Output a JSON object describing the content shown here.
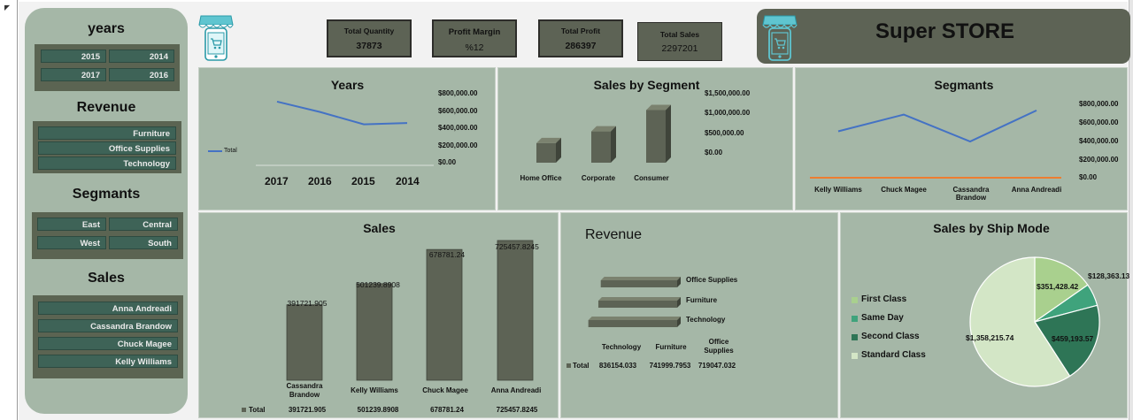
{
  "sidebar": {
    "years_title": "years",
    "years": [
      "2015",
      "2014",
      "2017",
      "2016"
    ],
    "revenue_title": "Revenue",
    "revenue": [
      "Furniture",
      "Office Supplies",
      "Technology"
    ],
    "segments_title": "Segmants",
    "segments": [
      "East",
      "Central",
      "West",
      "South"
    ],
    "sales_title": "Sales",
    "sales": [
      "Anna Andreadi",
      "Cassandra Brandow",
      "Chuck Magee",
      "Kelly Williams"
    ]
  },
  "kpis": {
    "total_quantity_label": "Total Quantity",
    "total_quantity_value": "37873",
    "profit_margin_label": "Profit Margin",
    "profit_margin_value": "%12",
    "total_profit_label": "Total Profit",
    "total_profit_value": "286397",
    "total_sales_label": "Total Sales",
    "total_sales_value": "2297201"
  },
  "banner": {
    "title": "Super STORE"
  },
  "colors": {
    "panel": "#a5b7a7",
    "dark_box": "#5d6355",
    "slicer_btn": "#3e6357",
    "line_blue": "#4472c4",
    "line_orange": "#ed7d31"
  },
  "charts": {
    "years": {
      "title": "Years",
      "legend": "Total",
      "y_ticks": [
        "$800,000.00",
        "$600,000.00",
        "$400,000.00",
        "$200,000.00",
        "$0.00"
      ]
    },
    "segment": {
      "title": "Sales by Segment",
      "y_ticks": [
        "$1,500,000.00",
        "$1,000,000.00",
        "$500,000.00",
        "$0.00"
      ]
    },
    "segmants": {
      "title": "Segmants",
      "y_ticks": [
        "$800,000.00",
        "$600,000.00",
        "$400,000.00",
        "$200,000.00",
        "$0.00"
      ]
    },
    "sales": {
      "title": "Sales",
      "legend": "Total",
      "labels": [
        "391721.905",
        "501239.8908",
        "678781.24",
        "725457.8245"
      ]
    },
    "revenue": {
      "title": "Revenue",
      "legend": "Total",
      "table_values": [
        "836154.033",
        "741999.7953",
        "719047.032"
      ]
    },
    "ship": {
      "title": "Sales by Ship Mode",
      "colors": [
        "#a9d08e",
        "#3fa37c",
        "#2e7556",
        "#d3e6c6"
      ]
    }
  },
  "chart_data": [
    {
      "type": "line",
      "title": "Years",
      "categories": [
        "2017",
        "2016",
        "2015",
        "2014"
      ],
      "series": [
        {
          "name": "Total",
          "values": [
            730000,
            610000,
            470000,
            485000
          ]
        }
      ],
      "ylim": [
        0,
        800000
      ]
    },
    {
      "type": "bar",
      "title": "Sales by Segment",
      "categories": [
        "Home Office",
        "Corporate",
        "Consumer"
      ],
      "values": [
        430000,
        690000,
        1160000
      ],
      "ylim": [
        0,
        1500000
      ]
    },
    {
      "type": "line",
      "title": "Segmants",
      "categories": [
        "Kelly Williams",
        "Chuck Magee",
        "Cassandra Brandow",
        "Anna Andreadi"
      ],
      "series": [
        {
          "values": [
            500000,
            680000,
            390000,
            725000
          ]
        },
        {
          "values": [
            0,
            0,
            0,
            0
          ]
        }
      ],
      "ylim": [
        0,
        800000
      ]
    },
    {
      "type": "bar",
      "title": "Sales",
      "categories": [
        "Cassandra Brandow",
        "Kelly Williams",
        "Chuck Magee",
        "Anna Andreadi"
      ],
      "series": [
        {
          "name": "Total",
          "values": [
            391721.905,
            501239.8908,
            678781.24,
            725457.8245
          ]
        }
      ],
      "ylim": [
        0,
        800000
      ]
    },
    {
      "type": "bar",
      "title": "Revenue",
      "categories": [
        "Technology",
        "Furniture",
        "Office Supplies"
      ],
      "series": [
        {
          "name": "Total",
          "values": [
            836154.033,
            741999.7953,
            719047.032
          ]
        }
      ],
      "xlim": [
        0,
        1000000
      ]
    },
    {
      "type": "pie",
      "title": "Sales by Ship Mode",
      "categories": [
        "First Class",
        "Same Day",
        "Second Class",
        "Standard Class"
      ],
      "values": [
        351428.42,
        128363.13,
        459193.57,
        1358215.74
      ],
      "value_labels": [
        "$351,428.42",
        "$128,363.13",
        "$459,193.57",
        "$1,358,215.74"
      ],
      "legend": "left"
    }
  ]
}
